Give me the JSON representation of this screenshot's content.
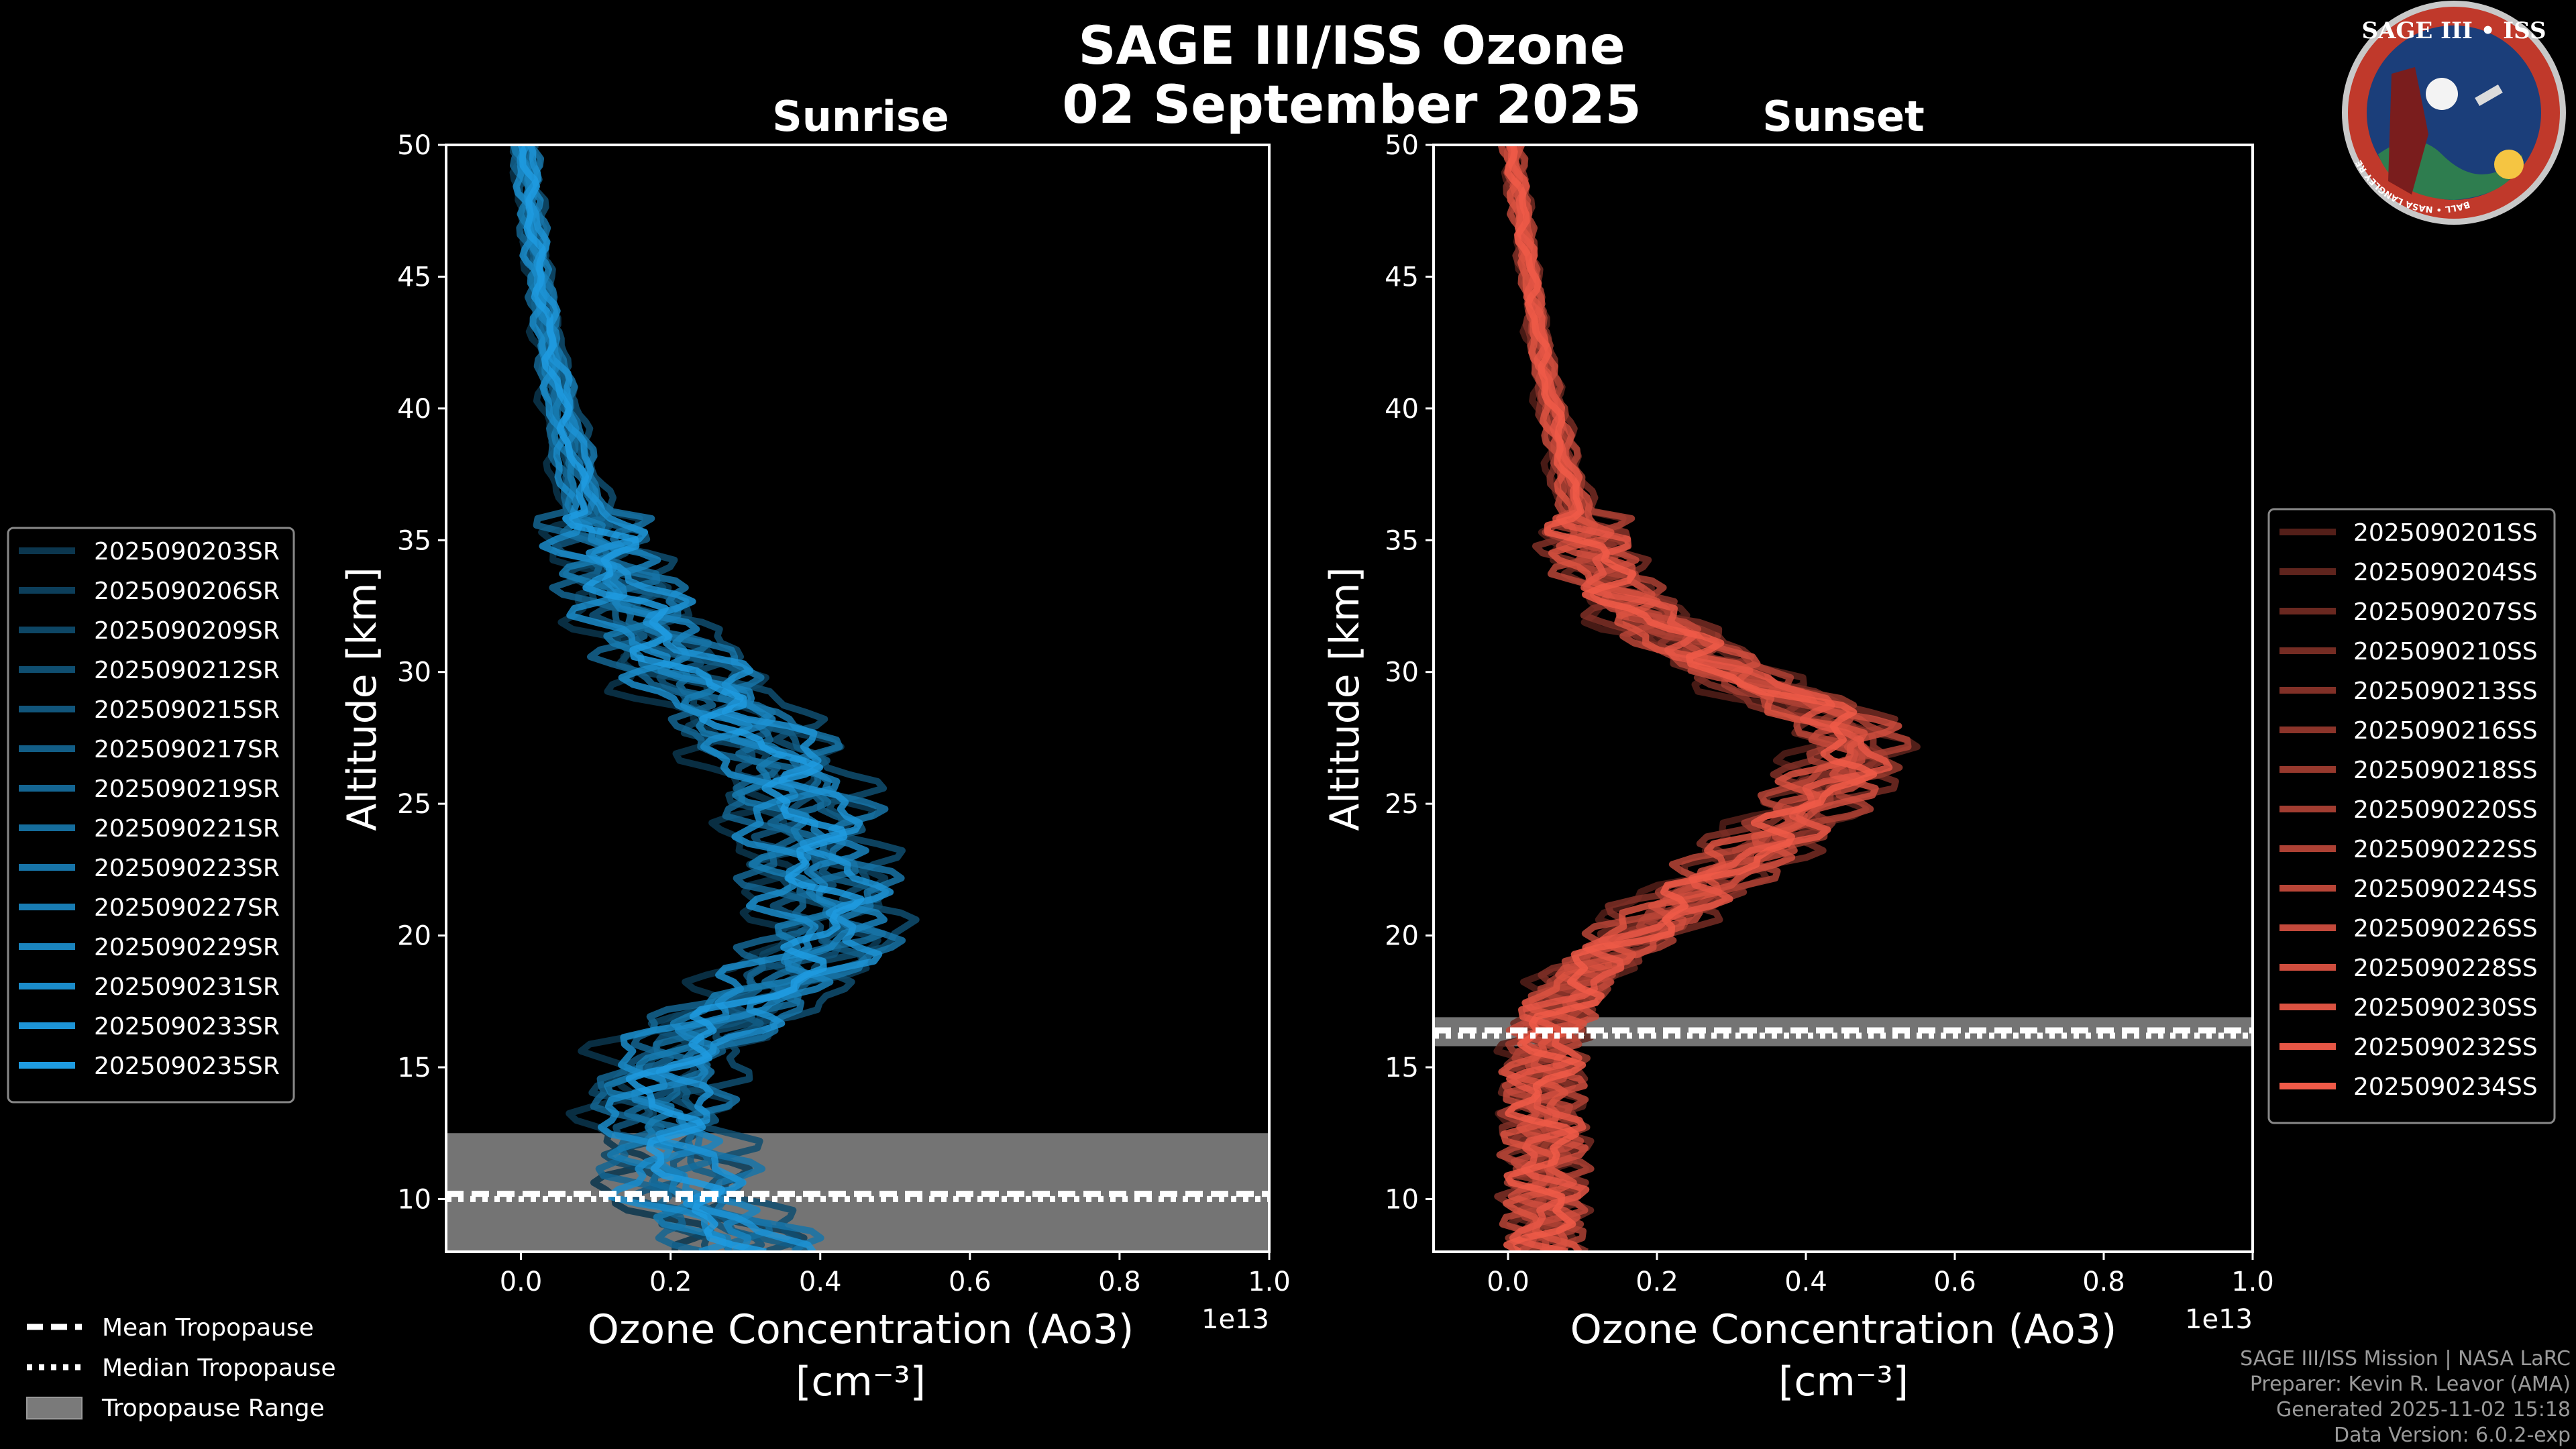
{
  "title": "SAGE III/ISS Ozone",
  "date": "02 September 2025",
  "chart_data": [
    {
      "type": "line",
      "panel": "Sunrise",
      "title": "Sunrise",
      "xlabel": "Ozone Concentration (Ao3)",
      "xunit": "[cm⁻³]",
      "xscale_label": "1e13",
      "ylabel": "Altitude [km]",
      "xlim": [
        -0.1,
        1.0
      ],
      "ylim": [
        8,
        50
      ],
      "xticks": [
        "0.0",
        "0.2",
        "0.4",
        "0.6",
        "0.8",
        "1.0"
      ],
      "yticks": [
        "10",
        "15",
        "20",
        "25",
        "30",
        "35",
        "40",
        "45",
        "50"
      ],
      "altitudes": [
        8.5,
        10,
        12,
        14,
        16,
        18,
        20,
        22,
        24,
        26,
        28,
        30,
        32,
        34,
        36,
        38,
        40,
        42,
        44,
        46,
        48,
        50
      ],
      "mean_profile": [
        0.3,
        0.22,
        0.2,
        0.18,
        0.22,
        0.34,
        0.42,
        0.4,
        0.38,
        0.36,
        0.3,
        0.22,
        0.16,
        0.12,
        0.09,
        0.07,
        0.055,
        0.04,
        0.03,
        0.02,
        0.012,
        0.005
      ],
      "color": "#1e9be0",
      "series": [
        {
          "name": "2025090203SR",
          "offset": -0.08
        },
        {
          "name": "2025090206SR",
          "offset": 0.05
        },
        {
          "name": "2025090209SR",
          "offset": -0.04
        },
        {
          "name": "2025090212SR",
          "offset": 0.07
        },
        {
          "name": "2025090215SR",
          "offset": -0.02
        },
        {
          "name": "2025090217SR",
          "offset": 0.03
        },
        {
          "name": "2025090219SR",
          "offset": -0.06
        },
        {
          "name": "2025090221SR",
          "offset": 0.01
        },
        {
          "name": "2025090223SR",
          "offset": 0.06
        },
        {
          "name": "2025090227SR",
          "offset": -0.03
        },
        {
          "name": "2025090229SR",
          "offset": 0.02
        },
        {
          "name": "2025090231SR",
          "offset": -0.05
        },
        {
          "name": "2025090233SR",
          "offset": 0.04
        },
        {
          "name": "2025090235SR",
          "offset": 0.0
        }
      ],
      "tropopause": {
        "mean": 10.2,
        "median": 10.0,
        "range": [
          8.0,
          12.5
        ]
      }
    },
    {
      "type": "line",
      "panel": "Sunset",
      "title": "Sunset",
      "xlabel": "Ozone Concentration (Ao3)",
      "xunit": "[cm⁻³]",
      "xscale_label": "1e13",
      "ylabel": "Altitude [km]",
      "xlim": [
        -0.1,
        1.0
      ],
      "ylim": [
        8,
        50
      ],
      "xticks": [
        "0.0",
        "0.2",
        "0.4",
        "0.6",
        "0.8",
        "1.0"
      ],
      "yticks": [
        "10",
        "15",
        "20",
        "25",
        "30",
        "35",
        "40",
        "45",
        "50"
      ],
      "altitudes": [
        8,
        10,
        12,
        14,
        16,
        17.5,
        19,
        20,
        21,
        22,
        23,
        24,
        25,
        26,
        27,
        28,
        29,
        30,
        31,
        32,
        33,
        34,
        36,
        38,
        40,
        42,
        44,
        46,
        48,
        50
      ],
      "mean_profile": [
        0.05,
        0.05,
        0.05,
        0.045,
        0.05,
        0.07,
        0.12,
        0.17,
        0.22,
        0.27,
        0.32,
        0.37,
        0.41,
        0.44,
        0.47,
        0.45,
        0.38,
        0.3,
        0.24,
        0.19,
        0.15,
        0.12,
        0.095,
        0.075,
        0.06,
        0.045,
        0.035,
        0.025,
        0.015,
        0.005
      ],
      "color": "#f05a48",
      "series": [
        {
          "name": "2025090201SS",
          "offset": -0.05
        },
        {
          "name": "2025090204SS",
          "offset": 0.03
        },
        {
          "name": "2025090207SS",
          "offset": -0.02
        },
        {
          "name": "2025090210SS",
          "offset": 0.04
        },
        {
          "name": "2025090213SS",
          "offset": -0.04
        },
        {
          "name": "2025090216SS",
          "offset": 0.01
        },
        {
          "name": "2025090218SS",
          "offset": 0.02
        },
        {
          "name": "2025090220SS",
          "offset": -0.01
        },
        {
          "name": "2025090222SS",
          "offset": 0.03
        },
        {
          "name": "2025090224SS",
          "offset": -0.03
        },
        {
          "name": "2025090226SS",
          "offset": 0.0
        },
        {
          "name": "2025090228SS",
          "offset": 0.02
        },
        {
          "name": "2025090230SS",
          "offset": -0.02
        },
        {
          "name": "2025090232SS",
          "offset": 0.01
        },
        {
          "name": "2025090234SS",
          "offset": 0.0
        }
      ],
      "tropopause": {
        "mean": 16.4,
        "median": 16.2,
        "range": [
          15.8,
          16.9
        ]
      }
    }
  ],
  "legend_tropopause": {
    "mean": "Mean Tropopause",
    "median": "Median Tropopause",
    "range": "Tropopause Range"
  },
  "footer": {
    "line1": "SAGE III/ISS Mission | NASA LaRC",
    "line2": "Preparer: Kevin R. Leavor (AMA)",
    "line3": "Generated 2025-11-02 15:18",
    "line4": "Data Version: 6.0.2-exp"
  },
  "logo": {
    "title": "SAGE III • ISS",
    "ring": "BALL • NASA LANGLEY RESEARCH CENTER • TAS-I • ESA"
  },
  "colors": {
    "background": "#000000",
    "sunrise": "#1e9be0",
    "sunset": "#f05a48",
    "tropopause_band": "#7a7a7a"
  }
}
